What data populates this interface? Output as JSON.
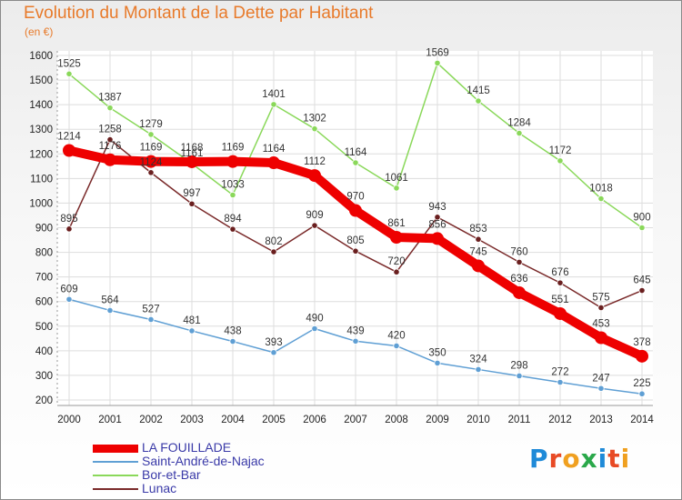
{
  "title": "Evolution du Montant de la Dette par Habitant",
  "unit": "(en €)",
  "logo": {
    "letters": [
      "P",
      "r",
      "o",
      "x",
      "i",
      "t",
      "i"
    ],
    "colors": [
      "#1f8ad8",
      "#e84a25",
      "#f0a020",
      "#2aa84a",
      "#1f8ad8",
      "#e84a25",
      "#f0a020"
    ]
  },
  "chart_data": {
    "type": "line",
    "title": "Evolution du Montant de la Dette par Habitant",
    "ylabel": "(en €)",
    "x": [
      "2000",
      "2001",
      "2002",
      "2003",
      "2004",
      "2005",
      "2006",
      "2007",
      "2008",
      "2009",
      "2010",
      "2011",
      "2012",
      "2013",
      "2014"
    ],
    "ylim": [
      200,
      1600
    ],
    "yticks": [
      200,
      300,
      400,
      500,
      600,
      700,
      800,
      900,
      1000,
      1100,
      1200,
      1300,
      1400,
      1500,
      1600
    ],
    "grid": true,
    "legend": "bottom-left",
    "series": [
      {
        "name": "LA FOUILLADE",
        "color": "#ee0000",
        "width": 10,
        "values": [
          1214,
          1176,
          1169,
          1168,
          1169,
          1164,
          1112,
          970,
          861,
          856,
          745,
          636,
          551,
          453,
          378
        ],
        "labels": [
          "1214",
          "1176",
          "1169",
          "1168",
          "1169",
          "1164",
          "1112",
          "970",
          "861",
          "856",
          "745",
          "636",
          "551",
          "453",
          "378"
        ]
      },
      {
        "name": "Saint-André-de-Najac",
        "color": "#5f9fd4",
        "width": 1.5,
        "values": [
          609,
          564,
          527,
          481,
          438,
          393,
          490,
          439,
          420,
          350,
          324,
          298,
          272,
          247,
          225
        ],
        "labels": [
          "609",
          "564",
          "527",
          "481",
          "438",
          "393",
          "490",
          "439",
          "420",
          "350",
          "324",
          "298",
          "272",
          "247",
          "225"
        ]
      },
      {
        "name": "Bor-et-Bar",
        "color": "#8ad85a",
        "width": 1.5,
        "values": [
          1525,
          1387,
          1279,
          1161,
          1033,
          1401,
          1302,
          1164,
          1061,
          1569,
          1415,
          1284,
          1172,
          1018,
          900
        ],
        "labels": [
          "1525",
          "1387",
          "1279",
          "1161",
          "1033",
          "1401",
          "1302",
          "1164",
          "1061",
          "1569",
          "1415",
          "1284",
          "1172",
          "1018",
          "900"
        ]
      },
      {
        "name": "Lunac",
        "color": "#7a2a2a",
        "width": 1.5,
        "values": [
          895,
          1258,
          1124,
          997,
          894,
          802,
          909,
          805,
          720,
          943,
          853,
          760,
          676,
          575,
          645
        ],
        "labels": [
          "895",
          "1258",
          "1124",
          "997",
          "894",
          "802",
          "909",
          "805",
          "720",
          "943",
          "853",
          "760",
          "676",
          "575",
          "645"
        ]
      }
    ]
  }
}
